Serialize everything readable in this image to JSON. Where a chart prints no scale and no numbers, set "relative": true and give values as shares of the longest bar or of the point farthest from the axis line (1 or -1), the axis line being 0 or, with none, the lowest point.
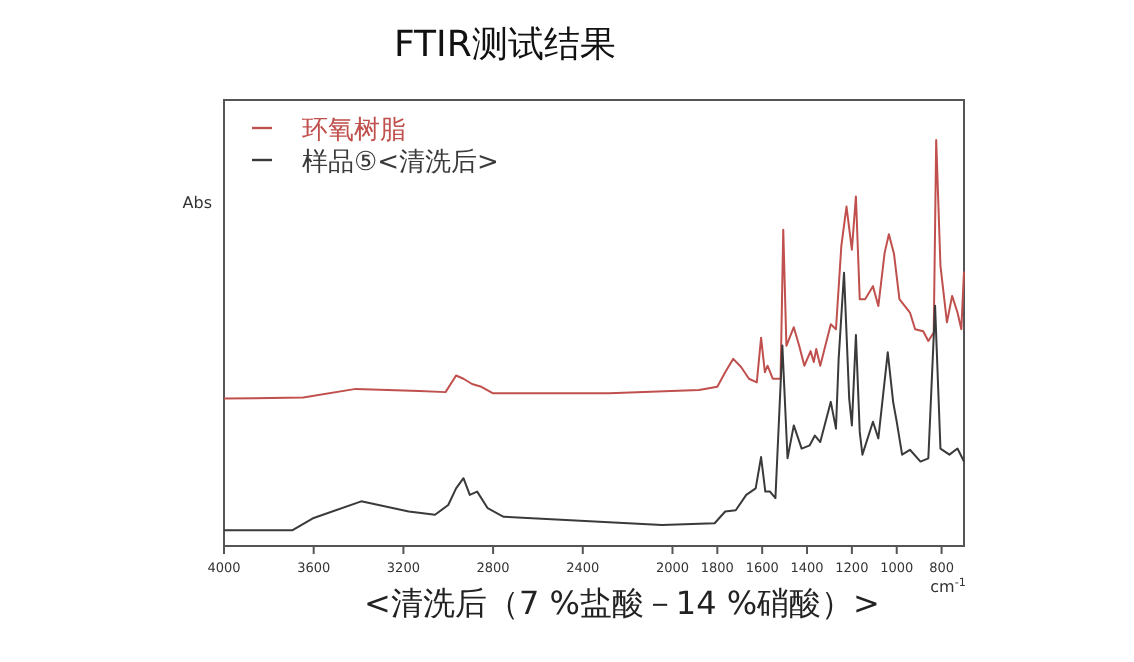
{
  "chart_data": {
    "type": "line",
    "title": "FTIR测试结果",
    "ylabel": "Abs",
    "xlabel": "cm$^{-1}$",
    "relative": true,
    "annotations": [
      "<清洗后（7 %盐酸－14 %硝酸）>"
    ],
    "xlim": [
      4000,
      700
    ],
    "xticks": [
      4000,
      3600,
      3200,
      2800,
      2400,
      2000,
      1800,
      1600,
      1400,
      1200,
      1000,
      800
    ],
    "legend": "top left",
    "grid": false,
    "series": [
      {
        "name": "环氧树脂",
        "color": "#c0504d",
        "x": [
          4000,
          3647,
          3412,
          3129,
          3012,
          2965,
          2932,
          2894,
          2856,
          2800,
          2282,
          1882,
          1800,
          1765,
          1729,
          1694,
          1659,
          1624,
          1605,
          1588,
          1576,
          1553,
          1518,
          1506,
          1492,
          1459,
          1435,
          1412,
          1384,
          1370,
          1359,
          1341,
          1294,
          1271,
          1247,
          1224,
          1200,
          1182,
          1165,
          1141,
          1106,
          1082,
          1054,
          1035,
          1012,
          988,
          941,
          918,
          882,
          859,
          835,
          824,
          805,
          776,
          753,
          729,
          712,
          700
        ],
        "values": [
          0.363,
          0.366,
          0.387,
          0.382,
          0.379,
          0.42,
          0.412,
          0.399,
          0.393,
          0.376,
          0.376,
          0.384,
          0.392,
          0.428,
          0.461,
          0.441,
          0.412,
          0.403,
          0.513,
          0.428,
          0.444,
          0.412,
          0.412,
          0.779,
          0.493,
          0.539,
          0.493,
          0.444,
          0.48,
          0.453,
          0.485,
          0.444,
          0.546,
          0.534,
          0.739,
          0.836,
          0.73,
          0.861,
          0.608,
          0.608,
          0.64,
          0.591,
          0.722,
          0.768,
          0.719,
          0.608,
          0.575,
          0.534,
          0.529,
          0.505,
          0.526,
          1.0,
          0.69,
          0.551,
          0.616,
          0.575,
          0.534,
          0.676
        ]
      },
      {
        "name": "样品⑤<清洗后>",
        "color": "#3a3a3a",
        "x": [
          4000,
          3694,
          3600,
          3388,
          3176,
          3059,
          3000,
          2965,
          2932,
          2904,
          2871,
          2824,
          2753,
          2047,
          1812,
          1765,
          1718,
          1671,
          1629,
          1605,
          1586,
          1565,
          1541,
          1510,
          1487,
          1459,
          1424,
          1388,
          1365,
          1341,
          1294,
          1271,
          1259,
          1235,
          1212,
          1200,
          1182,
          1165,
          1153,
          1106,
          1082,
          1040,
          1016,
          1000,
          976,
          941,
          894,
          859,
          829,
          805,
          765,
          729,
          700
        ],
        "values": [
          0.039,
          0.039,
          0.069,
          0.11,
          0.085,
          0.077,
          0.101,
          0.142,
          0.167,
          0.126,
          0.134,
          0.093,
          0.072,
          0.052,
          0.056,
          0.085,
          0.088,
          0.126,
          0.142,
          0.219,
          0.134,
          0.134,
          0.118,
          0.494,
          0.216,
          0.297,
          0.24,
          0.248,
          0.272,
          0.256,
          0.355,
          0.289,
          0.461,
          0.673,
          0.363,
          0.297,
          0.52,
          0.281,
          0.225,
          0.306,
          0.265,
          0.477,
          0.355,
          0.306,
          0.225,
          0.237,
          0.208,
          0.216,
          0.592,
          0.24,
          0.225,
          0.24,
          0.208
        ]
      }
    ]
  }
}
